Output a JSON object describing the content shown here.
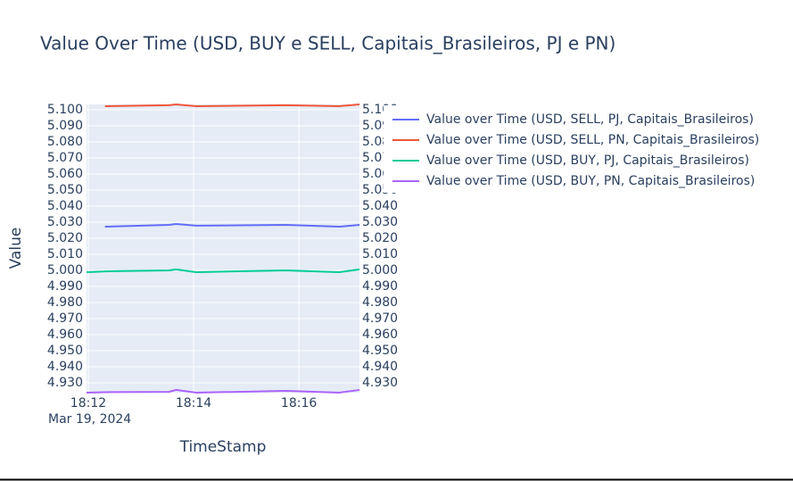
{
  "chart_data": {
    "type": "line",
    "title": "Value Over Time (USD, BUY e SELL, Capitais_Brasileiros, PJ e PN)",
    "x_label": "TimeStamp",
    "y_label": "Value",
    "x_date_label": "Mar 19, 2024",
    "x": [
      "2024-03-19T18:11:58",
      "2024-03-19T18:12:19",
      "2024-03-19T18:13:32",
      "2024-03-19T18:13:40",
      "2024-03-19T18:14:03",
      "2024-03-19T18:15:45",
      "2024-03-19T18:16:46",
      "2024-03-19T18:17:09"
    ],
    "series": [
      {
        "name": "Value over Time (USD, SELL, PJ, Capitais_Brasileiros)",
        "color": "#636efa",
        "values": [
          null,
          5.0272,
          5.0283,
          5.0289,
          5.0278,
          5.0283,
          5.0272,
          5.0283
        ]
      },
      {
        "name": "Value over Time (USD, SELL, PN, Capitais_Brasileiros)",
        "color": "#ef553b",
        "values": [
          null,
          5.1022,
          5.1028,
          5.1033,
          5.1022,
          5.1028,
          5.1022,
          5.1033
        ]
      },
      {
        "name": "Value over Time (USD, BUY, PJ, Capitais_Brasileiros)",
        "color": "#00cc96",
        "values": [
          4.9989,
          4.9994,
          5.0,
          5.0006,
          4.9989,
          5.0,
          4.9989,
          5.0006
        ]
      },
      {
        "name": "Value over Time (USD, BUY, PN, Capitais_Brasileiros)",
        "color": "#ab63fa",
        "values": [
          4.9239,
          4.9242,
          4.9244,
          4.9256,
          4.9239,
          4.925,
          4.9239,
          4.9256
        ]
      }
    ],
    "xlim": [
      "2024-03-19T18:11:58",
      "2024-03-19T18:17:09"
    ],
    "xticks": [
      {
        "value": "2024-03-19T18:12:00",
        "label": "18:12"
      },
      {
        "value": "2024-03-19T18:14:00",
        "label": "18:14"
      },
      {
        "value": "2024-03-19T18:16:00",
        "label": "18:16"
      }
    ],
    "ylim": [
      4.9239,
      5.1033
    ],
    "yticks": [
      {
        "value": 4.93,
        "label": "4.930"
      },
      {
        "value": 4.94,
        "label": "4.940"
      },
      {
        "value": 4.95,
        "label": "4.950"
      },
      {
        "value": 4.96,
        "label": "4.960"
      },
      {
        "value": 4.97,
        "label": "4.970"
      },
      {
        "value": 4.98,
        "label": "4.980"
      },
      {
        "value": 4.99,
        "label": "4.990"
      },
      {
        "value": 5.0,
        "label": "5.000"
      },
      {
        "value": 5.01,
        "label": "5.010"
      },
      {
        "value": 5.02,
        "label": "5.020"
      },
      {
        "value": 5.03,
        "label": "5.030"
      },
      {
        "value": 5.04,
        "label": "5.040"
      },
      {
        "value": 5.05,
        "label": "5.050"
      },
      {
        "value": 5.06,
        "label": "5.060"
      },
      {
        "value": 5.07,
        "label": "5.070"
      },
      {
        "value": 5.08,
        "label": "5.080"
      },
      {
        "value": 5.09,
        "label": "5.090"
      },
      {
        "value": 5.1,
        "label": "5.100"
      }
    ],
    "y2lim": [
      4.9239,
      5.1033
    ],
    "y2ticks": [
      {
        "value": 4.93,
        "label": "4.930"
      },
      {
        "value": 4.94,
        "label": "4.940"
      },
      {
        "value": 4.95,
        "label": "4.950"
      },
      {
        "value": 4.96,
        "label": "4.960"
      },
      {
        "value": 4.97,
        "label": "4.970"
      },
      {
        "value": 4.98,
        "label": "4.980"
      },
      {
        "value": 4.99,
        "label": "4.990"
      },
      {
        "value": 5.0,
        "label": "5.000"
      },
      {
        "value": 5.01,
        "label": "5.010"
      },
      {
        "value": 5.02,
        "label": "5.020"
      },
      {
        "value": 5.03,
        "label": "5.030"
      },
      {
        "value": 5.04,
        "label": "5.040"
      },
      {
        "value": 5.05,
        "label": "5.050"
      },
      {
        "value": 5.06,
        "label": "5.060"
      },
      {
        "value": 5.07,
        "label": "5.070"
      },
      {
        "value": 5.08,
        "label": "5.080"
      },
      {
        "value": 5.09,
        "label": "5.090"
      },
      {
        "value": 5.1,
        "label": "5.100"
      }
    ],
    "grid": true
  }
}
